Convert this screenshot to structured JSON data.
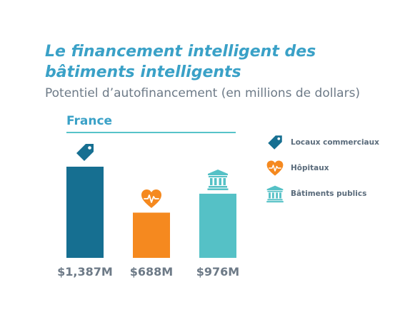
{
  "header": {
    "title": "Le financement intelligent des bâtiments intelligents",
    "subtitle": "Potentiel d’autofinancement (en millions de dollars)",
    "region": "France"
  },
  "legend": [
    {
      "label": "Locaux commerciaux",
      "icon": "price-tag-icon",
      "color": "#166f91"
    },
    {
      "label": "Hôpitaux",
      "icon": "heart-pulse-icon",
      "color": "#f5891f"
    },
    {
      "label": "Bâtiments publics",
      "icon": "public-building-icon",
      "color": "#55c1c6"
    }
  ],
  "chart_data": {
    "type": "bar",
    "categories": [
      "Locaux commerciaux",
      "Hôpitaux",
      "Bâtiments publics"
    ],
    "values": [
      1387,
      688,
      976
    ],
    "data_labels": [
      "$1,387M",
      "$688M",
      "$976M"
    ],
    "colors": [
      "#166f91",
      "#f5891f",
      "#55c1c6"
    ],
    "icons": [
      "price-tag-icon",
      "heart-pulse-icon",
      "public-building-icon"
    ],
    "unit": "millions of dollars",
    "ylim": [
      0,
      1387
    ],
    "grid": false,
    "legend_position": "right"
  }
}
